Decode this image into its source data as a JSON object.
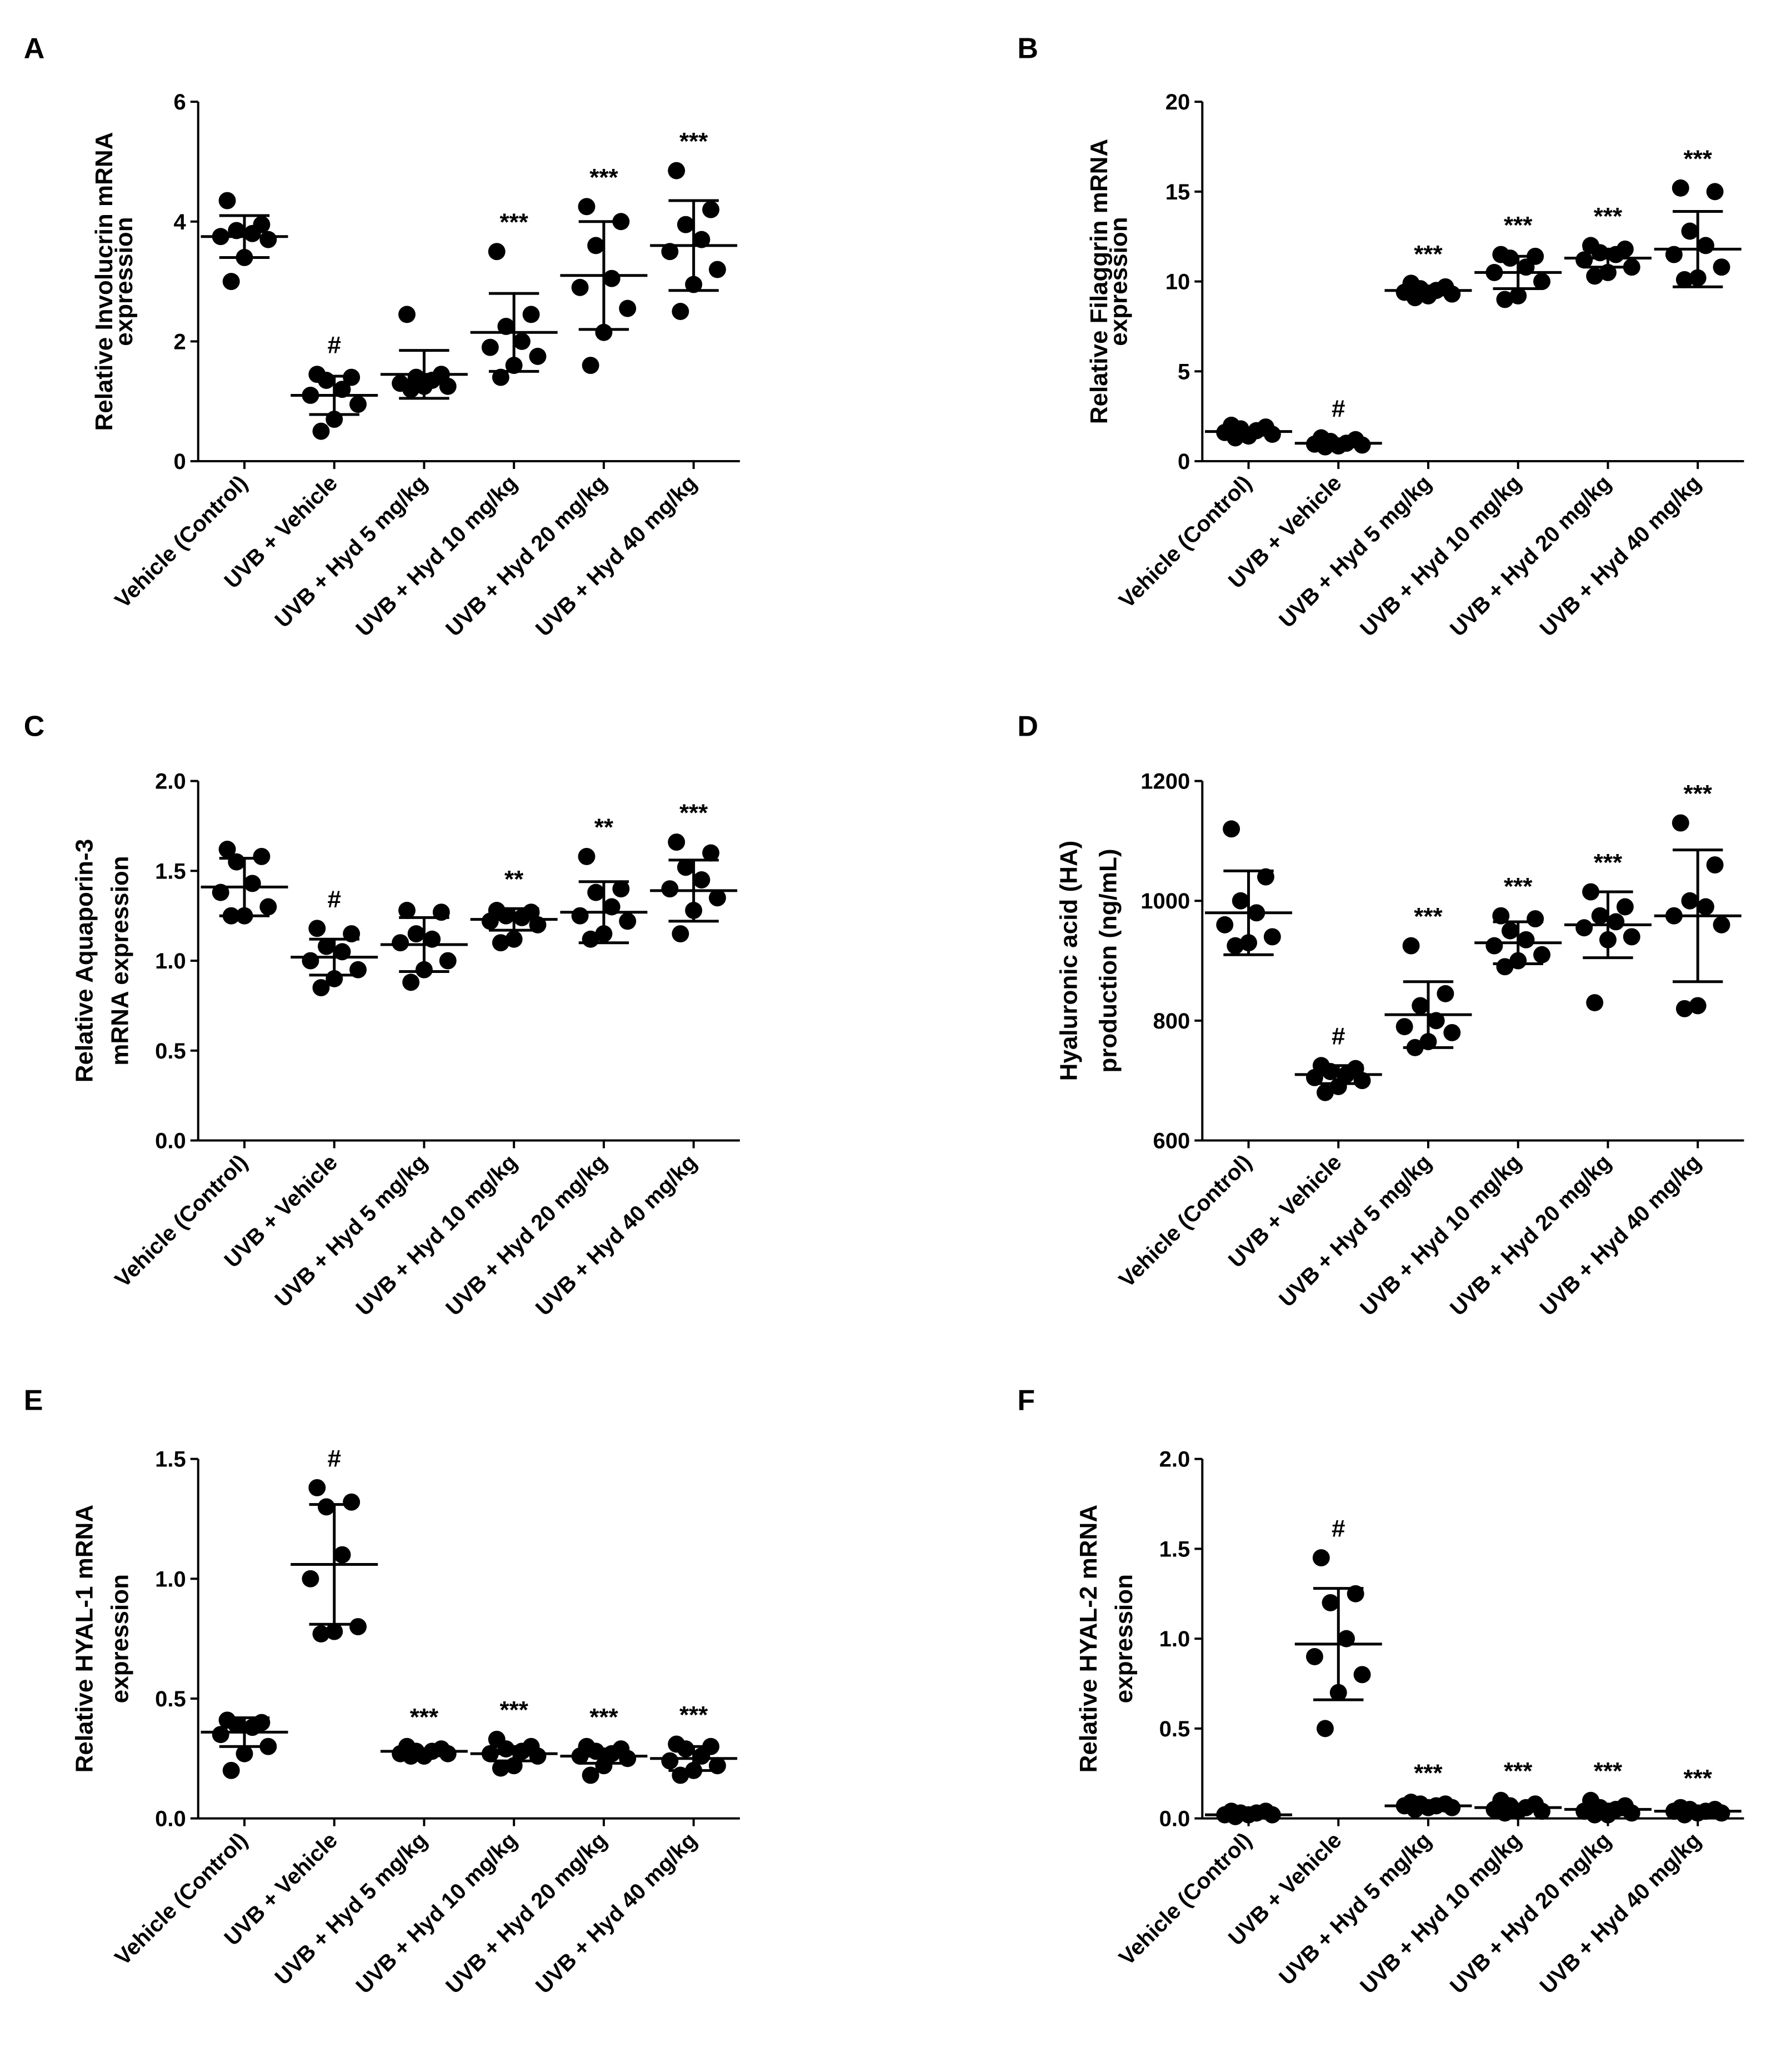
{
  "chart_data": [
    {
      "panel": "A",
      "type": "scatter",
      "ylabel": [
        "Relative Involucrin mRNA",
        "expression"
      ],
      "ylim": [
        0,
        6
      ],
      "yticks": [
        "0",
        "2",
        "4",
        "6"
      ],
      "ytick_values": [
        0,
        2,
        4,
        6
      ],
      "categories": [
        "Vehicle (Control)",
        "UVB + Vehicle",
        "UVB + Hyd 5 mg/kg",
        "UVB + Hyd 10 mg/kg",
        "UVB + Hyd 20 mg/kg",
        "UVB + Hyd 40 mg/kg"
      ],
      "points": [
        [
          4.35,
          3.95,
          3.85,
          3.8,
          3.75,
          3.7,
          3.4,
          3.0
        ],
        [
          1.45,
          1.4,
          1.35,
          1.2,
          1.1,
          0.95,
          0.7,
          0.5
        ],
        [
          2.45,
          1.45,
          1.4,
          1.35,
          1.3,
          1.25,
          1.25,
          1.2
        ],
        [
          3.5,
          2.45,
          2.25,
          2.0,
          1.9,
          1.75,
          1.6,
          1.4
        ],
        [
          4.25,
          4.0,
          3.6,
          3.05,
          2.9,
          2.55,
          2.15,
          1.6
        ],
        [
          4.85,
          4.2,
          3.95,
          3.7,
          3.5,
          3.2,
          2.95,
          2.5
        ]
      ],
      "mean": [
        3.75,
        1.1,
        1.45,
        2.15,
        3.1,
        3.6
      ],
      "sd": [
        0.35,
        0.32,
        0.4,
        0.65,
        0.9,
        0.75
      ],
      "significance": [
        "",
        "#",
        "",
        "***",
        "***",
        "***"
      ]
    },
    {
      "panel": "B",
      "type": "scatter",
      "ylabel": [
        "Relative Filaggrin mRNA",
        "expression"
      ],
      "ylim": [
        0,
        20
      ],
      "yticks": [
        "0",
        "5",
        "10",
        "15",
        "20"
      ],
      "ytick_values": [
        0,
        5,
        10,
        15,
        20
      ],
      "categories": [
        "Vehicle (Control)",
        "UVB + Vehicle",
        "UVB + Hyd 5 mg/kg",
        "UVB + Hyd 10 mg/kg",
        "UVB + Hyd 20 mg/kg",
        "UVB + Hyd 40 mg/kg"
      ],
      "points": [
        [
          2.0,
          1.9,
          1.8,
          1.7,
          1.6,
          1.5,
          1.4,
          1.3
        ],
        [
          1.3,
          1.2,
          1.1,
          1.0,
          0.95,
          0.9,
          0.85,
          0.8
        ],
        [
          9.9,
          9.7,
          9.6,
          9.5,
          9.4,
          9.3,
          9.2,
          9.1
        ],
        [
          11.5,
          11.4,
          11.3,
          10.8,
          10.5,
          10.0,
          9.2,
          9.0
        ],
        [
          12.0,
          11.8,
          11.6,
          11.5,
          11.2,
          10.8,
          10.5,
          10.3
        ],
        [
          15.2,
          15.0,
          12.8,
          12.0,
          11.5,
          10.8,
          10.2,
          10.1
        ]
      ],
      "mean": [
        1.65,
        1.0,
        9.5,
        10.5,
        11.3,
        11.8
      ],
      "sd": [
        0.2,
        0.2,
        0.25,
        0.9,
        0.5,
        2.1
      ],
      "significance": [
        "",
        "#",
        "***",
        "***",
        "***",
        "***"
      ]
    },
    {
      "panel": "C",
      "type": "scatter",
      "ylabel": [
        "Relative Aquaporin-3",
        "mRNA expression"
      ],
      "ylim": [
        0,
        2
      ],
      "yticks": [
        "0.0",
        "0.5",
        "1.0",
        "1.5",
        "2.0"
      ],
      "ytick_values": [
        0,
        0.5,
        1.0,
        1.5,
        2.0
      ],
      "categories": [
        "Vehicle (Control)",
        "UVB + Vehicle",
        "UVB + Hyd 5 mg/kg",
        "UVB + Hyd 10 mg/kg",
        "UVB + Hyd 20 mg/kg",
        "UVB + Hyd 40 mg/kg"
      ],
      "points": [
        [
          1.62,
          1.58,
          1.55,
          1.43,
          1.38,
          1.3,
          1.25,
          1.25
        ],
        [
          1.18,
          1.15,
          1.08,
          1.05,
          1.0,
          0.95,
          0.9,
          0.85
        ],
        [
          1.28,
          1.27,
          1.15,
          1.12,
          1.1,
          1.0,
          0.95,
          0.88
        ],
        [
          1.28,
          1.27,
          1.25,
          1.24,
          1.22,
          1.2,
          1.12,
          1.1
        ],
        [
          1.58,
          1.4,
          1.38,
          1.3,
          1.25,
          1.22,
          1.15,
          1.12
        ],
        [
          1.66,
          1.6,
          1.52,
          1.45,
          1.4,
          1.35,
          1.28,
          1.15
        ]
      ],
      "mean": [
        1.41,
        1.02,
        1.09,
        1.23,
        1.27,
        1.39
      ],
      "sd": [
        0.16,
        0.1,
        0.15,
        0.06,
        0.17,
        0.17
      ],
      "significance": [
        "",
        "#",
        "",
        "**",
        "**",
        "***"
      ]
    },
    {
      "panel": "D",
      "type": "scatter",
      "ylabel": [
        "Hyaluronic acid (HA)",
        "production (ng/mL)"
      ],
      "ylim": [
        600,
        1200
      ],
      "yticks": [
        "600",
        "800",
        "1000",
        "1200"
      ],
      "ytick_values": [
        600,
        800,
        1000,
        1200
      ],
      "categories": [
        "Vehicle (Control)",
        "UVB + Vehicle",
        "UVB + Hyd 5 mg/kg",
        "UVB + Hyd 10 mg/kg",
        "UVB + Hyd 20 mg/kg",
        "UVB + Hyd 40 mg/kg"
      ],
      "points": [
        [
          1120,
          1040,
          1000,
          980,
          960,
          940,
          930,
          925
        ],
        [
          725,
          720,
          715,
          710,
          705,
          700,
          690,
          680
        ],
        [
          925,
          845,
          825,
          800,
          790,
          780,
          765,
          755
        ],
        [
          975,
          970,
          950,
          935,
          925,
          910,
          900,
          890
        ],
        [
          1015,
          990,
          975,
          965,
          955,
          940,
          935,
          830
        ],
        [
          1130,
          1060,
          1000,
          990,
          975,
          960,
          825,
          820
        ]
      ],
      "mean": [
        980,
        710,
        810,
        930,
        960,
        975
      ],
      "sd": [
        70,
        15,
        55,
        35,
        55,
        110
      ],
      "significance": [
        "",
        "#",
        "***",
        "***",
        "***",
        "***"
      ]
    },
    {
      "panel": "E",
      "type": "scatter",
      "ylabel": [
        "Relative HYAL-1 mRNA",
        "expression"
      ],
      "ylim": [
        0,
        1.5
      ],
      "yticks": [
        "0.0",
        "0.5",
        "1.0",
        "1.5"
      ],
      "ytick_values": [
        0,
        0.5,
        1.0,
        1.5
      ],
      "categories": [
        "Vehicle (Control)",
        "UVB + Vehicle",
        "UVB + Hyd 5 mg/kg",
        "UVB + Hyd 10 mg/kg",
        "UVB + Hyd 20 mg/kg",
        "UVB + Hyd 40 mg/kg"
      ],
      "points": [
        [
          0.41,
          0.4,
          0.39,
          0.38,
          0.35,
          0.3,
          0.27,
          0.2
        ],
        [
          1.38,
          1.32,
          1.3,
          1.1,
          1.0,
          0.8,
          0.78,
          0.77
        ],
        [
          0.3,
          0.29,
          0.28,
          0.28,
          0.27,
          0.27,
          0.26,
          0.26
        ],
        [
          0.33,
          0.3,
          0.29,
          0.28,
          0.27,
          0.26,
          0.22,
          0.21
        ],
        [
          0.3,
          0.29,
          0.28,
          0.27,
          0.26,
          0.25,
          0.22,
          0.18
        ],
        [
          0.31,
          0.3,
          0.29,
          0.26,
          0.24,
          0.22,
          0.2,
          0.18
        ]
      ],
      "mean": [
        0.36,
        1.06,
        0.28,
        0.27,
        0.26,
        0.25
      ],
      "sd": [
        0.06,
        0.25,
        0.01,
        0.03,
        0.03,
        0.05
      ],
      "significance": [
        "",
        "#",
        "***",
        "***",
        "***",
        "***"
      ]
    },
    {
      "panel": "F",
      "type": "scatter",
      "ylabel": [
        "Relative HYAL-2 mRNA",
        "expression"
      ],
      "ylim": [
        0,
        2
      ],
      "yticks": [
        "0.0",
        "0.5",
        "1.0",
        "1.5",
        "2.0"
      ],
      "ytick_values": [
        0,
        0.5,
        1.0,
        1.5,
        2.0
      ],
      "categories": [
        "Vehicle (Control)",
        "UVB + Vehicle",
        "UVB + Hyd 5 mg/kg",
        "UVB + Hyd 10 mg/kg",
        "UVB + Hyd 20 mg/kg",
        "UVB + Hyd 40 mg/kg"
      ],
      "points": [
        [
          0.04,
          0.04,
          0.03,
          0.03,
          0.02,
          0.02,
          0.02,
          0.01
        ],
        [
          1.45,
          1.25,
          1.2,
          1.0,
          0.9,
          0.8,
          0.7,
          0.5
        ],
        [
          0.09,
          0.08,
          0.08,
          0.07,
          0.07,
          0.06,
          0.06,
          0.05
        ],
        [
          0.1,
          0.08,
          0.07,
          0.06,
          0.05,
          0.04,
          0.04,
          0.03
        ],
        [
          0.1,
          0.07,
          0.06,
          0.05,
          0.04,
          0.03,
          0.02,
          0.02
        ],
        [
          0.06,
          0.05,
          0.05,
          0.04,
          0.04,
          0.03,
          0.03,
          0.02
        ]
      ],
      "mean": [
        0.02,
        0.97,
        0.07,
        0.06,
        0.05,
        0.04
      ],
      "sd": [
        0.01,
        0.31,
        0.01,
        0.02,
        0.03,
        0.01
      ],
      "significance": [
        "",
        "#",
        "***",
        "***",
        "***",
        "***"
      ]
    }
  ]
}
